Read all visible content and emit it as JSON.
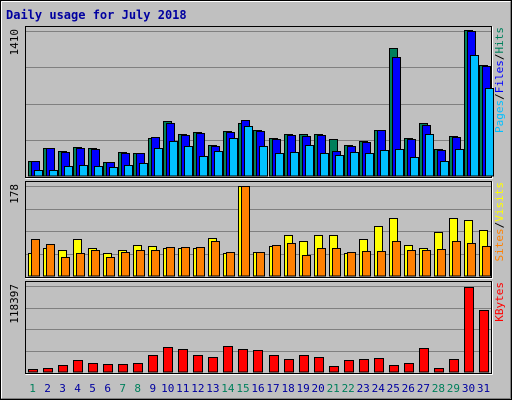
{
  "title": "Daily usage for July 2018",
  "colors": {
    "hits": "#00805c",
    "files": "#0000ff",
    "pages": "#00c0ff",
    "visits": "#ffff00",
    "sites": "#ff8000",
    "kbytes": "#ff0000",
    "weekend_label": "#00805c",
    "weekday_label": "#0000a0",
    "title": "#0000a0",
    "panel": "#c0c0c0"
  },
  "chart_data": [
    {
      "type": "bar",
      "panel": "hits-files-pages",
      "y_max_label": "1410",
      "ylim": [
        0,
        1410
      ],
      "categories": [
        "1",
        "2",
        "3",
        "4",
        "5",
        "6",
        "7",
        "8",
        "9",
        "10",
        "11",
        "12",
        "13",
        "14",
        "15",
        "16",
        "17",
        "18",
        "19",
        "20",
        "21",
        "22",
        "23",
        "24",
        "25",
        "26",
        "27",
        "28",
        "29",
        "30",
        "31"
      ],
      "weekend_days": [
        1,
        7,
        8,
        14,
        15,
        21,
        22,
        28,
        29
      ],
      "legend": [
        {
          "name": "Hits",
          "separator": "/"
        },
        {
          "name": "Files",
          "separator": "/"
        },
        {
          "name": "Pages",
          "separator": ""
        }
      ],
      "series": [
        {
          "name": "Hits",
          "values": [
            150,
            270,
            240,
            280,
            270,
            140,
            230,
            220,
            370,
            530,
            410,
            430,
            300,
            440,
            520,
            450,
            370,
            410,
            410,
            410,
            360,
            300,
            340,
            450,
            1240,
            370,
            520,
            260,
            390,
            1420,
            1080
          ]
        },
        {
          "name": "Files",
          "values": [
            150,
            270,
            230,
            270,
            260,
            140,
            220,
            220,
            380,
            520,
            400,
            420,
            290,
            430,
            540,
            440,
            360,
            400,
            390,
            400,
            240,
            290,
            330,
            450,
            1160,
            360,
            500,
            250,
            380,
            1410,
            1070
          ]
        },
        {
          "name": "Pages",
          "values": [
            60,
            60,
            100,
            110,
            100,
            90,
            110,
            130,
            270,
            340,
            290,
            190,
            240,
            370,
            490,
            290,
            220,
            230,
            300,
            220,
            200,
            230,
            220,
            250,
            260,
            180,
            410,
            150,
            260,
            1180,
            860
          ]
        }
      ]
    },
    {
      "type": "bar",
      "panel": "visits-sites",
      "y_max_label": "178",
      "ylim": [
        0,
        178
      ],
      "legend": [
        {
          "name": "Visits",
          "separator": "/"
        },
        {
          "name": "Sites",
          "separator": ""
        }
      ],
      "series": [
        {
          "name": "Visits",
          "values": [
            46,
            56,
            52,
            74,
            56,
            46,
            51,
            61,
            60,
            56,
            56,
            56,
            76,
            46,
            178,
            47,
            60,
            82,
            70,
            82,
            82,
            46,
            74,
            98,
            114,
            62,
            55,
            88,
            114,
            111,
            91
          ]
        },
        {
          "name": "Sites",
          "values": [
            73,
            64,
            37,
            46,
            52,
            37,
            48,
            52,
            51,
            57,
            58,
            58,
            70,
            47,
            178,
            47,
            61,
            65,
            41,
            56,
            56,
            47,
            50,
            50,
            70,
            52,
            51,
            54,
            70,
            65,
            60
          ]
        }
      ]
    },
    {
      "type": "bar",
      "panel": "kbytes",
      "y_max_label": "118397",
      "ylim": [
        0,
        118397
      ],
      "legend": [
        {
          "name": "KBytes",
          "separator": ""
        }
      ],
      "series": [
        {
          "name": "KBytes",
          "values": [
            4000,
            6000,
            9000,
            17000,
            12000,
            11000,
            11000,
            13000,
            24000,
            35000,
            31000,
            23000,
            21000,
            36000,
            32000,
            30000,
            24000,
            18000,
            23000,
            21000,
            8000,
            17000,
            18000,
            19000,
            10000,
            13000,
            33000,
            6000,
            18000,
            117000,
            85000
          ]
        }
      ]
    }
  ]
}
